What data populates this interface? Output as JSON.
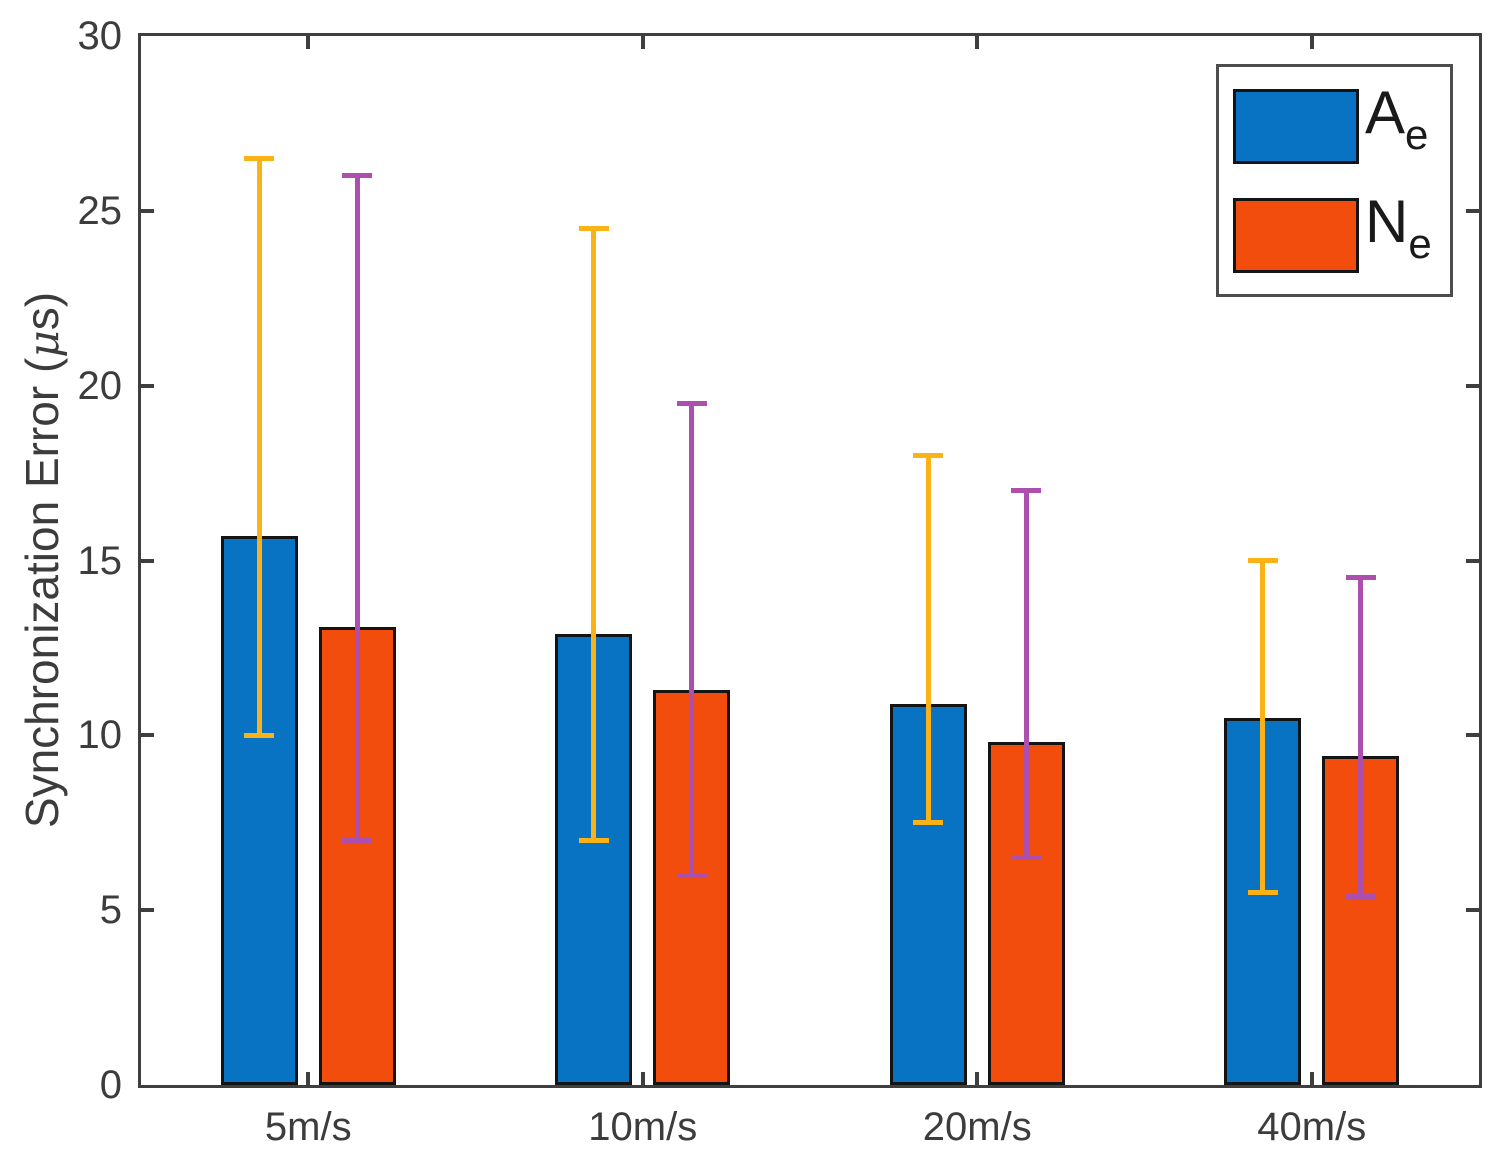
{
  "figure": {
    "background": "#ffffff",
    "axis_color": "#3f3f3f",
    "text_color": "#3c3c3c",
    "bar_edge_color": "#141414"
  },
  "axis": {
    "ylabel_prefix": "Synchronization Error (",
    "ylabel_mu": "μ",
    "ylabel_suffix": "s)"
  },
  "chart_data": {
    "type": "bar",
    "title": "",
    "xlabel": "",
    "ylabel": "Synchronization Error (μs)",
    "ylim": [
      0,
      30
    ],
    "yticks": [
      0,
      5,
      10,
      15,
      20,
      25,
      30
    ],
    "grid": false,
    "legend_position": "top-right",
    "error_bars": "asymmetric, cap style T, drawn over bars",
    "categories": [
      "5m/s",
      "10m/s",
      "20m/s",
      "40m/s"
    ],
    "series": [
      {
        "name": "Ae",
        "label": "A",
        "sub": "e",
        "color": "#0873C2",
        "error_color": "#FBB217",
        "values": [
          15.7,
          12.9,
          10.9,
          10.5
        ],
        "error_low": [
          10.0,
          7.0,
          7.5,
          5.5
        ],
        "error_high": [
          26.5,
          24.5,
          18.0,
          15.0
        ]
      },
      {
        "name": "Ne",
        "label": "N",
        "sub": "e",
        "color": "#F24D0D",
        "error_color": "#AC4FAE",
        "values": [
          13.1,
          11.3,
          9.8,
          9.4
        ],
        "error_low": [
          7.0,
          6.0,
          6.5,
          5.4
        ],
        "error_high": [
          26.0,
          19.5,
          17.0,
          14.5
        ]
      }
    ]
  }
}
